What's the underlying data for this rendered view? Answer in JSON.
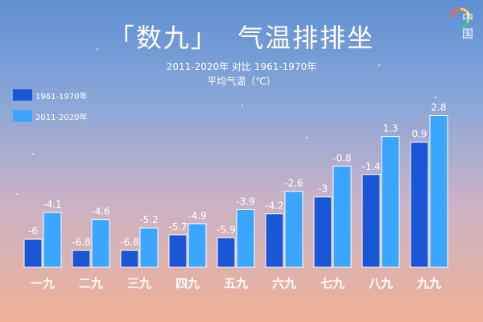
{
  "header": {
    "title": "「数九」  气温排排坐",
    "subtitle_line1": "2011-2020年 对比 1961-1970年",
    "subtitle_line2": "平均气温（℃）",
    "logo_text": "中国"
  },
  "colors": {
    "series_1961": "#1a56d6",
    "series_2011": "#3aa6ff",
    "text": "#ffffff"
  },
  "chart_data": {
    "type": "bar",
    "title": "「数九」  气温排排坐",
    "subtitle": "2011-2020年 对比 1961-1970年",
    "ylabel": "平均气温（℃）",
    "categories": [
      "一九",
      "二九",
      "三九",
      "四九",
      "五九",
      "六九",
      "七九",
      "八九",
      "九九"
    ],
    "series": [
      {
        "name": "1961-1970年",
        "values": [
          -6,
          -6.8,
          -6.8,
          -5.7,
          -5.9,
          -4.2,
          -3,
          -1.4,
          0.9
        ],
        "labels": [
          "-6",
          "-6.8",
          "-6.8",
          "-5.7",
          "-5.9",
          "-4.2",
          "-3",
          "-1.4",
          "0.9"
        ]
      },
      {
        "name": "2011-2020年",
        "values": [
          -4.1,
          -4.6,
          -5.2,
          -4.9,
          -3.9,
          -2.6,
          -0.8,
          1.3,
          2.8
        ],
        "labels": [
          "-4.1",
          "-4.6",
          "-5.2",
          "-4.9",
          "-3.9",
          "-2.6",
          "-0.8",
          "1.3",
          "2.8"
        ]
      }
    ],
    "legend_position": "top-left",
    "grid": false
  }
}
